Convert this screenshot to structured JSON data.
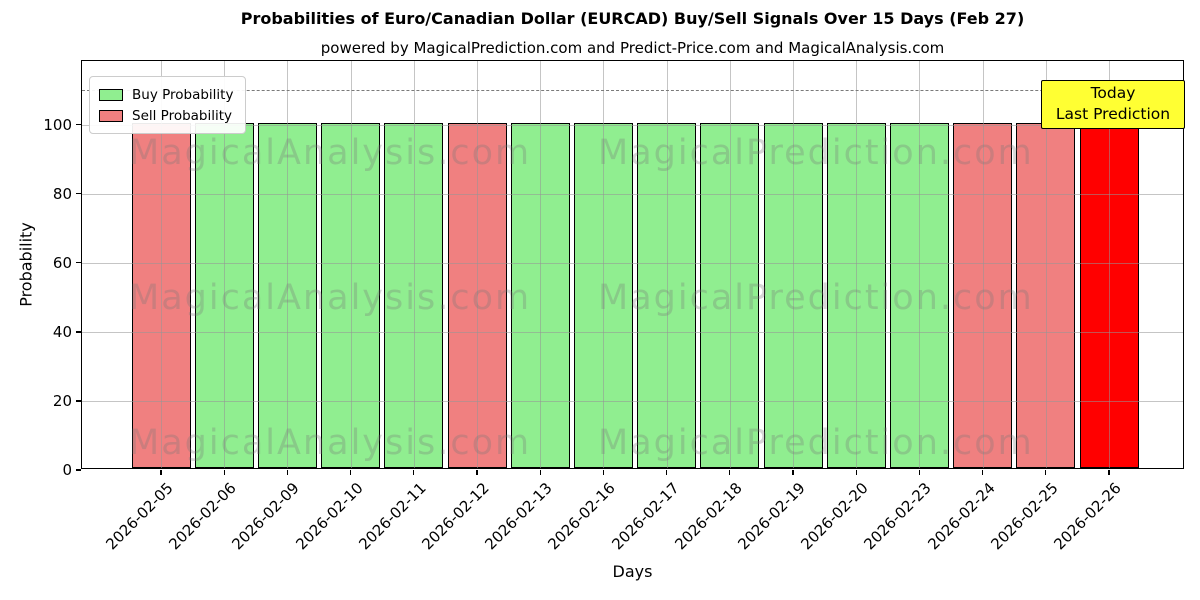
{
  "header": {
    "title": "Probabilities of Euro/Canadian Dollar (EURCAD) Buy/Sell Signals Over 15 Days (Feb 27)",
    "subtitle": "powered by MagicalPrediction.com and Predict-Price.com and MagicalAnalysis.com"
  },
  "legend": {
    "items": [
      {
        "label": "Buy Probability",
        "color": "#90EE90"
      },
      {
        "label": "Sell Probability",
        "color": "#F08080"
      }
    ]
  },
  "annotation_box": {
    "line1": "Today",
    "line2": "Last Prediction",
    "bg_color": "#FFFF33"
  },
  "watermarks": {
    "left_text": "MagicalAnalysis.com",
    "right_text": "MagicalPrediction.com"
  },
  "chart_data": {
    "type": "bar",
    "title": "Probabilities of Euro/Canadian Dollar (EURCAD) Buy/Sell Signals Over 15 Days (Feb 27)",
    "xlabel": "Days",
    "ylabel": "Probability",
    "categories": [
      "2026-02-05",
      "2026-02-06",
      "2026-02-09",
      "2026-02-10",
      "2026-02-11",
      "2026-02-12",
      "2026-02-13",
      "2026-02-16",
      "2026-02-17",
      "2026-02-18",
      "2026-02-19",
      "2026-02-20",
      "2026-02-23",
      "2026-02-24",
      "2026-02-25",
      "2026-02-26"
    ],
    "values": [
      100,
      100,
      100,
      100,
      100,
      100,
      100,
      100,
      100,
      100,
      100,
      100,
      100,
      100,
      100,
      100
    ],
    "bar_signals": [
      "sell",
      "buy",
      "buy",
      "buy",
      "buy",
      "sell",
      "buy",
      "buy",
      "buy",
      "buy",
      "buy",
      "buy",
      "buy",
      "sell",
      "sell",
      "today"
    ],
    "signal_colors": {
      "buy": "#90EE90",
      "sell": "#F08080",
      "today": "#FF0000"
    },
    "yticks": [
      0,
      20,
      40,
      60,
      80,
      100
    ],
    "ylim": [
      0,
      118.5
    ],
    "threshold_line": {
      "value": 110,
      "style": "dashed",
      "color": "#7a7a7a"
    },
    "grid": true,
    "legend_position": "upper-left"
  }
}
